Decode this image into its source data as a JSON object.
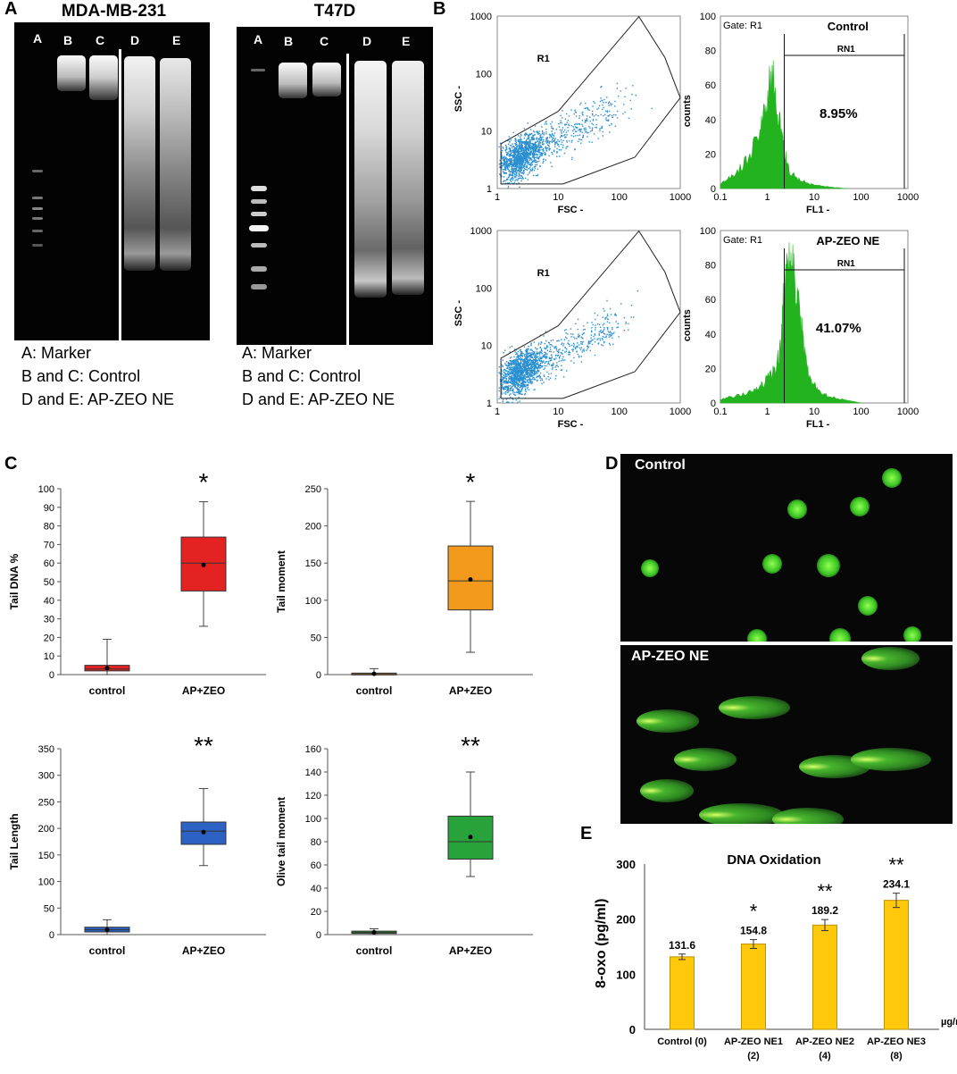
{
  "panels": {
    "A": "A",
    "B": "B",
    "C": "C",
    "D": "D",
    "E": "E"
  },
  "gels": [
    {
      "title": "MDA-MB-231",
      "lanes": [
        "A",
        "B",
        "C",
        "D",
        "E"
      ],
      "legend": [
        "A: Marker",
        "B and C: Control",
        "D and E: AP-ZEO NE"
      ]
    },
    {
      "title": "T47D",
      "lanes": [
        "A",
        "B",
        "C",
        "D",
        "E"
      ],
      "legend": [
        "A: Marker",
        "B and C: Control",
        "D and E: AP-ZEO NE"
      ]
    }
  ],
  "colors": {
    "scatter": "#2a8fd0",
    "histogram": "#22b31f",
    "tail_dna": "#e52222",
    "tail_moment": "#f39a1c",
    "tail_length": "#2c62c4",
    "olive": "#28a23a",
    "bar": "#ffc80a"
  },
  "chart_data": [
    {
      "type": "scatter",
      "panel": "B",
      "title": "",
      "xlabel": "FSC",
      "ylabel": "SSC",
      "xscale": "log",
      "yscale": "log",
      "xlim": [
        1,
        1000
      ],
      "ylim": [
        1,
        1000
      ],
      "xticks": [
        "1",
        "10",
        "100",
        "1000"
      ],
      "yticks": [
        "1",
        "10",
        "100",
        "1000"
      ],
      "gate": "R1",
      "gate_polygon": [
        [
          1.1,
          1.2
        ],
        [
          1.1,
          6
        ],
        [
          12,
          20
        ],
        [
          200,
          1000
        ],
        [
          350,
          200
        ],
        [
          900,
          1000
        ]
      ]
    },
    {
      "type": "area",
      "panel": "B",
      "title": "Control",
      "gate_label": "Gate: R1",
      "marker": "RN1",
      "percent": "8.95%",
      "xlabel": "FL1",
      "ylabel": "counts",
      "xscale": "log",
      "xlim": [
        0.1,
        1000
      ],
      "ylim": [
        0,
        100
      ],
      "xticks": [
        "0.1",
        "1",
        "10",
        "100",
        "1000"
      ],
      "yticks": [
        "0",
        "20",
        "40",
        "60",
        "80",
        "100"
      ],
      "x": [
        0.1,
        0.2,
        0.4,
        0.7,
        1.0,
        1.3,
        1.8,
        2.3,
        3,
        5,
        10,
        20,
        50
      ],
      "y": [
        3,
        8,
        18,
        35,
        55,
        66,
        40,
        22,
        10,
        5,
        2,
        1,
        0
      ],
      "gate_start": 2.3
    },
    {
      "type": "scatter",
      "panel": "B",
      "title": "",
      "xlabel": "FSC",
      "ylabel": "SSC",
      "xscale": "log",
      "yscale": "log",
      "xlim": [
        1,
        1000
      ],
      "ylim": [
        1,
        1000
      ],
      "xticks": [
        "1",
        "10",
        "100",
        "1000"
      ],
      "yticks": [
        "1",
        "10",
        "100",
        "1000"
      ],
      "gate": "R1"
    },
    {
      "type": "area",
      "panel": "B",
      "title": "AP-ZEO NE",
      "gate_label": "Gate: R1",
      "marker": "RN1",
      "percent": "41.07%",
      "xlabel": "FL1",
      "ylabel": "counts",
      "xscale": "log",
      "xlim": [
        0.1,
        1000
      ],
      "ylim": [
        0,
        100
      ],
      "xticks": [
        "0.1",
        "1",
        "10",
        "100",
        "1000"
      ],
      "yticks": [
        "0",
        "20",
        "40",
        "60",
        "80",
        "100"
      ],
      "x": [
        0.1,
        0.2,
        0.4,
        0.7,
        1.0,
        1.5,
        2.0,
        2.3,
        2.8,
        3.5,
        4.5,
        6,
        8,
        12,
        20,
        40,
        100
      ],
      "y": [
        2,
        4,
        6,
        10,
        14,
        20,
        35,
        75,
        83,
        78,
        60,
        35,
        15,
        8,
        4,
        2,
        0
      ],
      "gate_start": 2.3
    },
    {
      "type": "box",
      "panel": "C",
      "title": "",
      "ylabel": "Tail DNA %",
      "ylim": [
        0,
        100
      ],
      "yticks": [
        "0",
        "10",
        "20",
        "30",
        "40",
        "50",
        "60",
        "70",
        "80",
        "90",
        "100"
      ],
      "categories": [
        "control",
        "AP+ZEO"
      ],
      "significance": "*",
      "boxes": [
        {
          "min": 0,
          "q1": 2,
          "median": 3,
          "q3": 5,
          "max": 19,
          "mean": 3.5
        },
        {
          "min": 26,
          "q1": 45,
          "median": 60,
          "q3": 74,
          "max": 93,
          "mean": 59
        }
      ]
    },
    {
      "type": "box",
      "panel": "C",
      "title": "",
      "ylabel": "Tail moment",
      "ylim": [
        0,
        250
      ],
      "yticks": [
        "0",
        "50",
        "100",
        "150",
        "200",
        "250"
      ],
      "categories": [
        "control",
        "AP+ZEO"
      ],
      "significance": "*",
      "boxes": [
        {
          "min": 0,
          "q1": 0,
          "median": 1,
          "q3": 2,
          "max": 8,
          "mean": 1
        },
        {
          "min": 30,
          "q1": 87,
          "median": 126,
          "q3": 173,
          "max": 233,
          "mean": 128
        }
      ]
    },
    {
      "type": "box",
      "panel": "C",
      "title": "",
      "ylabel": "Tail Length",
      "ylim": [
        0,
        350
      ],
      "yticks": [
        "0",
        "50",
        "100",
        "150",
        "200",
        "250",
        "300",
        "350"
      ],
      "categories": [
        "control",
        "AP+ZEO"
      ],
      "significance": "**",
      "boxes": [
        {
          "min": 0,
          "q1": 5,
          "median": 9,
          "q3": 14,
          "max": 28,
          "mean": 9
        },
        {
          "min": 130,
          "q1": 170,
          "median": 195,
          "q3": 212,
          "max": 275,
          "mean": 193
        }
      ]
    },
    {
      "type": "box",
      "panel": "C",
      "title": "",
      "ylabel": "Olive tail moment",
      "ylim": [
        0,
        160
      ],
      "yticks": [
        "0",
        "20",
        "40",
        "60",
        "80",
        "100",
        "120",
        "140",
        "160"
      ],
      "categories": [
        "control",
        "AP+ZEO"
      ],
      "significance": "**",
      "boxes": [
        {
          "min": 0,
          "q1": 1,
          "median": 2,
          "q3": 3,
          "max": 5,
          "mean": 2
        },
        {
          "min": 50,
          "q1": 65,
          "median": 80,
          "q3": 102,
          "max": 140,
          "mean": 84
        }
      ]
    },
    {
      "type": "bar",
      "panel": "E",
      "title": "DNA Oxidation",
      "ylabel": "8-oxo (pg/ml)",
      "xunit": "µg/ml",
      "ylim": [
        0,
        300
      ],
      "yticks": [
        "0",
        "100",
        "200",
        "300"
      ],
      "categories": [
        [
          "Control (0)",
          ""
        ],
        [
          "AP-ZEO NE1",
          "(2)"
        ],
        [
          "AP-ZEO NE2",
          "(4)"
        ],
        [
          "AP-ZEO NE3",
          "(8)"
        ]
      ],
      "values": [
        131.6,
        154.8,
        189.2,
        234.1
      ],
      "labels": [
        "131.6",
        "154.8",
        "189.2",
        "234.1"
      ],
      "errors": [
        5,
        8,
        10,
        13
      ],
      "significance": [
        "",
        "*",
        "**",
        "**"
      ]
    }
  ],
  "comet": {
    "control_title": "Control",
    "treated_title": "AP-ZEO NE"
  }
}
